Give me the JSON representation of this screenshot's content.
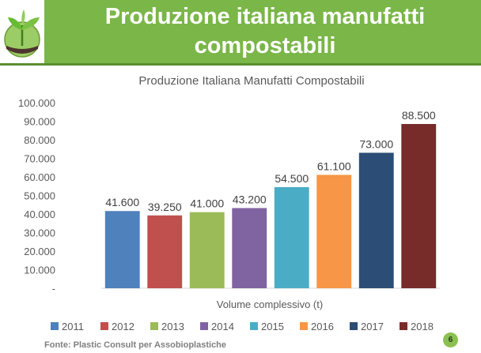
{
  "slide": {
    "title_line1": "Produzione italiana manufatti",
    "title_line2": "compostabili",
    "source": "Fonte: Plastic Consult per Assobioplastiche",
    "page_number": "6",
    "header_color": "#7ab648",
    "logo_icon": "seedling-globe-icon"
  },
  "chart_data": {
    "type": "bar",
    "title": "Produzione Italiana Manufatti Compostabili",
    "xlabel": "Volume complessivo (t)",
    "ylabel": "",
    "ylim": [
      0,
      100000
    ],
    "yticks": [
      {
        "value": 0,
        "label": "-"
      },
      {
        "value": 10000,
        "label": "10.000"
      },
      {
        "value": 20000,
        "label": "20.000"
      },
      {
        "value": 30000,
        "label": "30.000"
      },
      {
        "value": 40000,
        "label": "40.000"
      },
      {
        "value": 50000,
        "label": "50.000"
      },
      {
        "value": 60000,
        "label": "60.000"
      },
      {
        "value": 70000,
        "label": "70.000"
      },
      {
        "value": 80000,
        "label": "80.000"
      },
      {
        "value": 90000,
        "label": "90.000"
      },
      {
        "value": 100000,
        "label": "100.000"
      }
    ],
    "grid": false,
    "legend_position": "bottom",
    "series": [
      {
        "name": "2011",
        "value": 41600,
        "label": "41.600",
        "color": "#4f81bd"
      },
      {
        "name": "2012",
        "value": 39250,
        "label": "39.250",
        "color": "#c0504d"
      },
      {
        "name": "2013",
        "value": 41000,
        "label": "41.000",
        "color": "#9bbb59"
      },
      {
        "name": "2014",
        "value": 43200,
        "label": "43.200",
        "color": "#8064a2"
      },
      {
        "name": "2015",
        "value": 54500,
        "label": "54.500",
        "color": "#4bacc6"
      },
      {
        "name": "2016",
        "value": 61100,
        "label": "61.100",
        "color": "#f79646"
      },
      {
        "name": "2017",
        "value": 73000,
        "label": "73.000",
        "color": "#2c4d75"
      },
      {
        "name": "2018",
        "value": 88500,
        "label": "88.500",
        "color": "#772c2a"
      }
    ]
  }
}
